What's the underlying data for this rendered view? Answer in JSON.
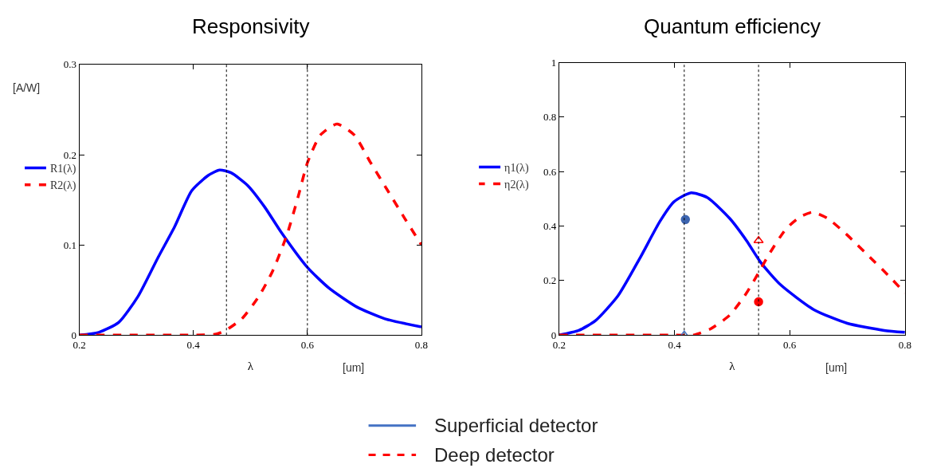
{
  "chart_data": [
    {
      "type": "line",
      "title": "Responsivity",
      "xlabel": "λ",
      "ylabel": "[A/W]",
      "annotations": [
        "[um]"
      ],
      "xlim": [
        0.2,
        0.8
      ],
      "xticks": [
        0.2,
        0.4,
        0.6,
        0.8
      ],
      "ylim": [
        0,
        0.3
      ],
      "yticks": [
        0,
        0.1,
        0.2,
        0.3
      ],
      "legend": "left",
      "ref_lines": [
        {
          "axis": "x",
          "value": 0.458,
          "color": "#000000",
          "line_style": "dotted"
        },
        {
          "axis": "x",
          "value": 0.6,
          "color": "#000000",
          "line_style": "dotted"
        }
      ],
      "series": [
        {
          "name": "R1(λ)",
          "color": "#0000ff",
          "line_style": "solid",
          "x": [
            0.2,
            0.234,
            0.269,
            0.303,
            0.338,
            0.367,
            0.397,
            0.426,
            0.446,
            0.466,
            0.495,
            0.525,
            0.554,
            0.6,
            0.638,
            0.687,
            0.736,
            0.8
          ],
          "values": [
            0.0,
            0.003,
            0.014,
            0.043,
            0.086,
            0.12,
            0.16,
            0.177,
            0.183,
            0.18,
            0.166,
            0.142,
            0.114,
            0.075,
            0.052,
            0.031,
            0.018,
            0.009
          ]
        },
        {
          "name": "R2(λ)",
          "color": "#ff0000",
          "line_style": "dashed",
          "x": [
            0.2,
            0.3,
            0.4,
            0.44,
            0.456,
            0.485,
            0.515,
            0.539,
            0.564,
            0.584,
            0.6,
            0.623,
            0.652,
            0.682,
            0.711,
            0.741,
            0.771,
            0.8
          ],
          "values": [
            0.0,
            0.0,
            0.0,
            0.001,
            0.005,
            0.018,
            0.043,
            0.071,
            0.111,
            0.154,
            0.191,
            0.222,
            0.234,
            0.222,
            0.191,
            0.16,
            0.129,
            0.1
          ]
        }
      ]
    },
    {
      "type": "line",
      "title": "Quantum efficiency",
      "xlabel": "λ",
      "annotations": [
        "[um]",
        "Superficial detector",
        "Deep detector"
      ],
      "xlim": [
        0.2,
        0.8
      ],
      "xticks": [
        0.2,
        0.4,
        0.6,
        0.8
      ],
      "ylim": [
        0,
        1
      ],
      "yticks": [
        0,
        0.2,
        0.4,
        0.6,
        0.8,
        1
      ],
      "legend": "left",
      "ref_lines": [
        {
          "axis": "x",
          "value": 0.417,
          "color": "#000000",
          "line_style": "dotted"
        },
        {
          "axis": "x",
          "value": 0.546,
          "color": "#000000",
          "line_style": "dotted"
        }
      ],
      "series": [
        {
          "name": "η1(λ)",
          "color": "#0000ff",
          "line_style": "solid",
          "x": [
            0.2,
            0.234,
            0.263,
            0.302,
            0.341,
            0.375,
            0.399,
            0.428,
            0.457,
            0.496,
            0.525,
            0.55,
            0.584,
            0.642,
            0.7,
            0.764,
            0.8
          ],
          "values": [
            0.0,
            0.017,
            0.053,
            0.144,
            0.286,
            0.418,
            0.489,
            0.522,
            0.505,
            0.428,
            0.347,
            0.266,
            0.185,
            0.093,
            0.043,
            0.017,
            0.01
          ]
        },
        {
          "name": "η2(λ)",
          "color": "#ff0000",
          "line_style": "dashed",
          "x": [
            0.2,
            0.3,
            0.4,
            0.433,
            0.462,
            0.496,
            0.525,
            0.545,
            0.564,
            0.593,
            0.618,
            0.64,
            0.666,
            0.7,
            0.739,
            0.773,
            0.8
          ],
          "values": [
            0.0,
            0.0,
            0.0,
            0.0,
            0.022,
            0.073,
            0.154,
            0.225,
            0.296,
            0.388,
            0.434,
            0.451,
            0.428,
            0.367,
            0.286,
            0.215,
            0.154
          ]
        },
        {
          "type": "scatter",
          "marker": "circle",
          "color": "#3d65b0",
          "x": [
            0.419
          ],
          "values": [
            0.424
          ]
        },
        {
          "type": "scatter",
          "marker": "triangle",
          "color": "#4472c4",
          "x": [
            0.417
          ],
          "values": [
            0.0
          ]
        },
        {
          "type": "scatter",
          "marker": "triangle",
          "color": "#ff0000",
          "x": [
            0.546
          ],
          "values": [
            0.347
          ]
        },
        {
          "type": "scatter",
          "marker": "circle",
          "color": "#ff0000",
          "x": [
            0.546
          ],
          "values": [
            0.122
          ]
        }
      ]
    }
  ]
}
